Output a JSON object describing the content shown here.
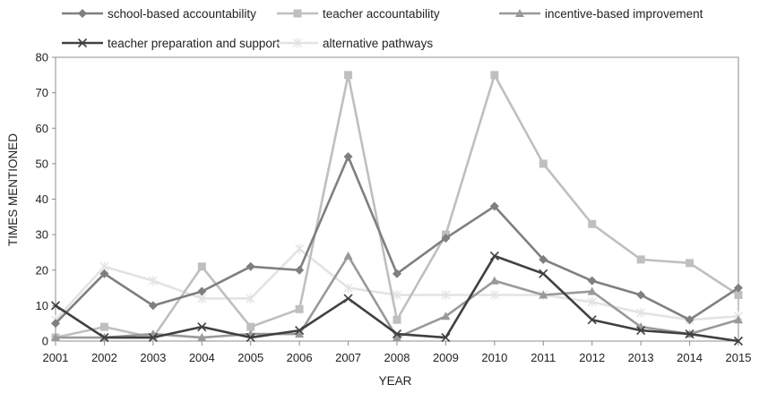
{
  "chart_data": {
    "type": "line",
    "xlabel": "YEAR",
    "ylabel": "TIMES MENTIONED",
    "ylim": [
      0,
      80
    ],
    "yticks": [
      0,
      10,
      20,
      30,
      40,
      50,
      60,
      70,
      80
    ],
    "x": [
      "2001",
      "2002",
      "2003",
      "2004",
      "2005",
      "2006",
      "2007",
      "2008",
      "2009",
      "2010",
      "2011",
      "2012",
      "2013",
      "2014",
      "2015"
    ],
    "grid": false,
    "legend_position": "top",
    "series": [
      {
        "name": "school-based accountability",
        "color": "#7f7f7f",
        "marker": "diamond",
        "values": [
          5,
          19,
          10,
          14,
          21,
          20,
          52,
          19,
          29,
          38,
          23,
          17,
          13,
          6,
          15
        ]
      },
      {
        "name": "teacher accountability",
        "color": "#bfbfbf",
        "marker": "square",
        "values": [
          1,
          4,
          1,
          21,
          4,
          9,
          75,
          6,
          30,
          75,
          50,
          33,
          23,
          22,
          13
        ]
      },
      {
        "name": "incentive-based improvement",
        "color": "#999999",
        "marker": "triangle",
        "values": [
          1,
          1,
          2,
          1,
          2,
          2,
          24,
          1,
          7,
          17,
          13,
          14,
          4,
          2,
          6
        ]
      },
      {
        "name": "teacher preparation and support",
        "color": "#404040",
        "marker": "x",
        "values": [
          10,
          1,
          1,
          4,
          1,
          3,
          12,
          2,
          1,
          24,
          19,
          6,
          3,
          2,
          0
        ]
      },
      {
        "name": "alternative pathways",
        "color": "#e3e3e3",
        "marker": "star",
        "values": [
          6,
          21,
          17,
          12,
          12,
          26,
          15,
          13,
          13,
          13,
          13,
          11,
          8,
          6,
          7
        ]
      }
    ]
  }
}
